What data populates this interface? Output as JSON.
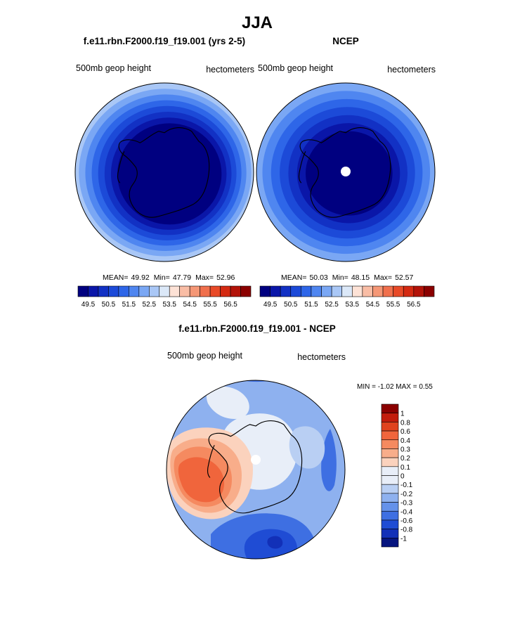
{
  "figure": {
    "title": "JJA",
    "colors": {
      "ocean_fill_note": "blue-red diverging colormap",
      "coast": "#000000",
      "pole_mark": "#ffffff"
    }
  },
  "chart_data": [
    {
      "type": "heatmap",
      "projection": "south-polar-stereographic",
      "title": "f.e11.rbn.F2000.f19_f19.001 (yrs 2-5)",
      "left_label": "500mb geop height",
      "right_label": "hectometers",
      "stats": {
        "mean_label": "MEAN=",
        "mean": "49.92",
        "min_label": "Min=",
        "min": "47.79",
        "max_label": "Max=",
        "max": "52.96"
      },
      "colorbar": {
        "orientation": "horizontal",
        "levels": [
          49.5,
          50.0,
          50.5,
          51.0,
          51.5,
          52.0,
          52.5,
          53.0,
          53.5,
          54.0,
          54.5,
          55.0,
          55.5,
          56.0,
          56.5
        ],
        "tick_labels": [
          "49.5",
          "50.5",
          "51.5",
          "52.5",
          "53.5",
          "54.5",
          "55.5",
          "56.5"
        ],
        "colors": [
          "#000080",
          "#0a16a8",
          "#1231c4",
          "#1c4ad8",
          "#2e66e8",
          "#4f86f0",
          "#7aa7f4",
          "#a9c7f6",
          "#dbe8f8",
          "#fde2d6",
          "#f9bda5",
          "#f59776",
          "#f0704d",
          "#e84a28",
          "#d42a12",
          "#b31309",
          "#8b0000"
        ]
      },
      "ring_levels_outer_to_inner": [
        52.75,
        52.25,
        51.75,
        51.25,
        50.75,
        50.25,
        49.75,
        49.25
      ],
      "pole_marker": false
    },
    {
      "type": "heatmap",
      "projection": "south-polar-stereographic",
      "title": "NCEP",
      "left_label": "500mb geop height",
      "right_label": "hectometers",
      "stats": {
        "mean_label": "MEAN=",
        "mean": "50.03",
        "min_label": "Min=",
        "min": "48.15",
        "max_label": "Max=",
        "max": "52.57"
      },
      "colorbar": {
        "orientation": "horizontal",
        "levels": [
          49.5,
          50.0,
          50.5,
          51.0,
          51.5,
          52.0,
          52.5,
          53.0,
          53.5,
          54.0,
          54.5,
          55.0,
          55.5,
          56.0,
          56.5
        ],
        "tick_labels": [
          "49.5",
          "50.5",
          "51.5",
          "52.5",
          "53.5",
          "54.5",
          "55.5",
          "56.5"
        ],
        "colors": [
          "#000080",
          "#0a16a8",
          "#1231c4",
          "#1c4ad8",
          "#2e66e8",
          "#4f86f0",
          "#7aa7f4",
          "#a9c7f6",
          "#dbe8f8",
          "#fde2d6",
          "#f9bda5",
          "#f59776",
          "#f0704d",
          "#e84a28",
          "#d42a12",
          "#b31309",
          "#8b0000"
        ]
      },
      "ring_levels_outer_to_inner": [
        52.25,
        51.75,
        51.25,
        50.75,
        50.25,
        49.75,
        49.25
      ],
      "pole_marker": true
    },
    {
      "type": "heatmap",
      "projection": "south-polar-stereographic",
      "title": "f.e11.rbn.F2000.f19_f19.001 - NCEP",
      "left_label": "500mb geop height",
      "right_label": "hectometers",
      "minmax_text": "MIN =  -1.02 MAX =   0.55",
      "colorbar": {
        "orientation": "vertical",
        "tick_labels": [
          "1",
          "0.8",
          "0.6",
          "0.4",
          "0.3",
          "0.2",
          "0.1",
          "0",
          "-0.1",
          "-0.2",
          "-0.3",
          "-0.4",
          "-0.6",
          "-0.8",
          "-1"
        ],
        "colors": [
          "#8b0000",
          "#c21c0c",
          "#e0431e",
          "#f0653c",
          "#f58a60",
          "#f8ad8a",
          "#fbd2bd",
          "#e8eef8",
          "#e8eef8",
          "#b9cff3",
          "#8eb1ef",
          "#6592ea",
          "#3e6fe2",
          "#1f4cd4",
          "#1230b8",
          "#06157f"
        ]
      },
      "regions": [
        {
          "name": "background",
          "level": -0.25
        },
        {
          "name": "pole-region",
          "level": -0.05
        },
        {
          "name": "lobe-north",
          "level": -0.05
        },
        {
          "name": "lobe-east",
          "level": -0.15
        },
        {
          "name": "blob-west-outer",
          "level": 0.15
        },
        {
          "name": "blob-west-mid",
          "level": 0.25
        },
        {
          "name": "blob-west-inner",
          "level": 0.35
        },
        {
          "name": "blob-west-core",
          "level": 0.5
        },
        {
          "name": "neg-bottom",
          "level": -0.5
        },
        {
          "name": "neg-bottom-deep",
          "level": -0.7
        },
        {
          "name": "neg-bottom-core",
          "level": -0.9
        },
        {
          "name": "neg-right",
          "level": -0.5
        },
        {
          "name": "neg-top",
          "level": -0.5
        }
      ],
      "pole_marker": true
    }
  ]
}
